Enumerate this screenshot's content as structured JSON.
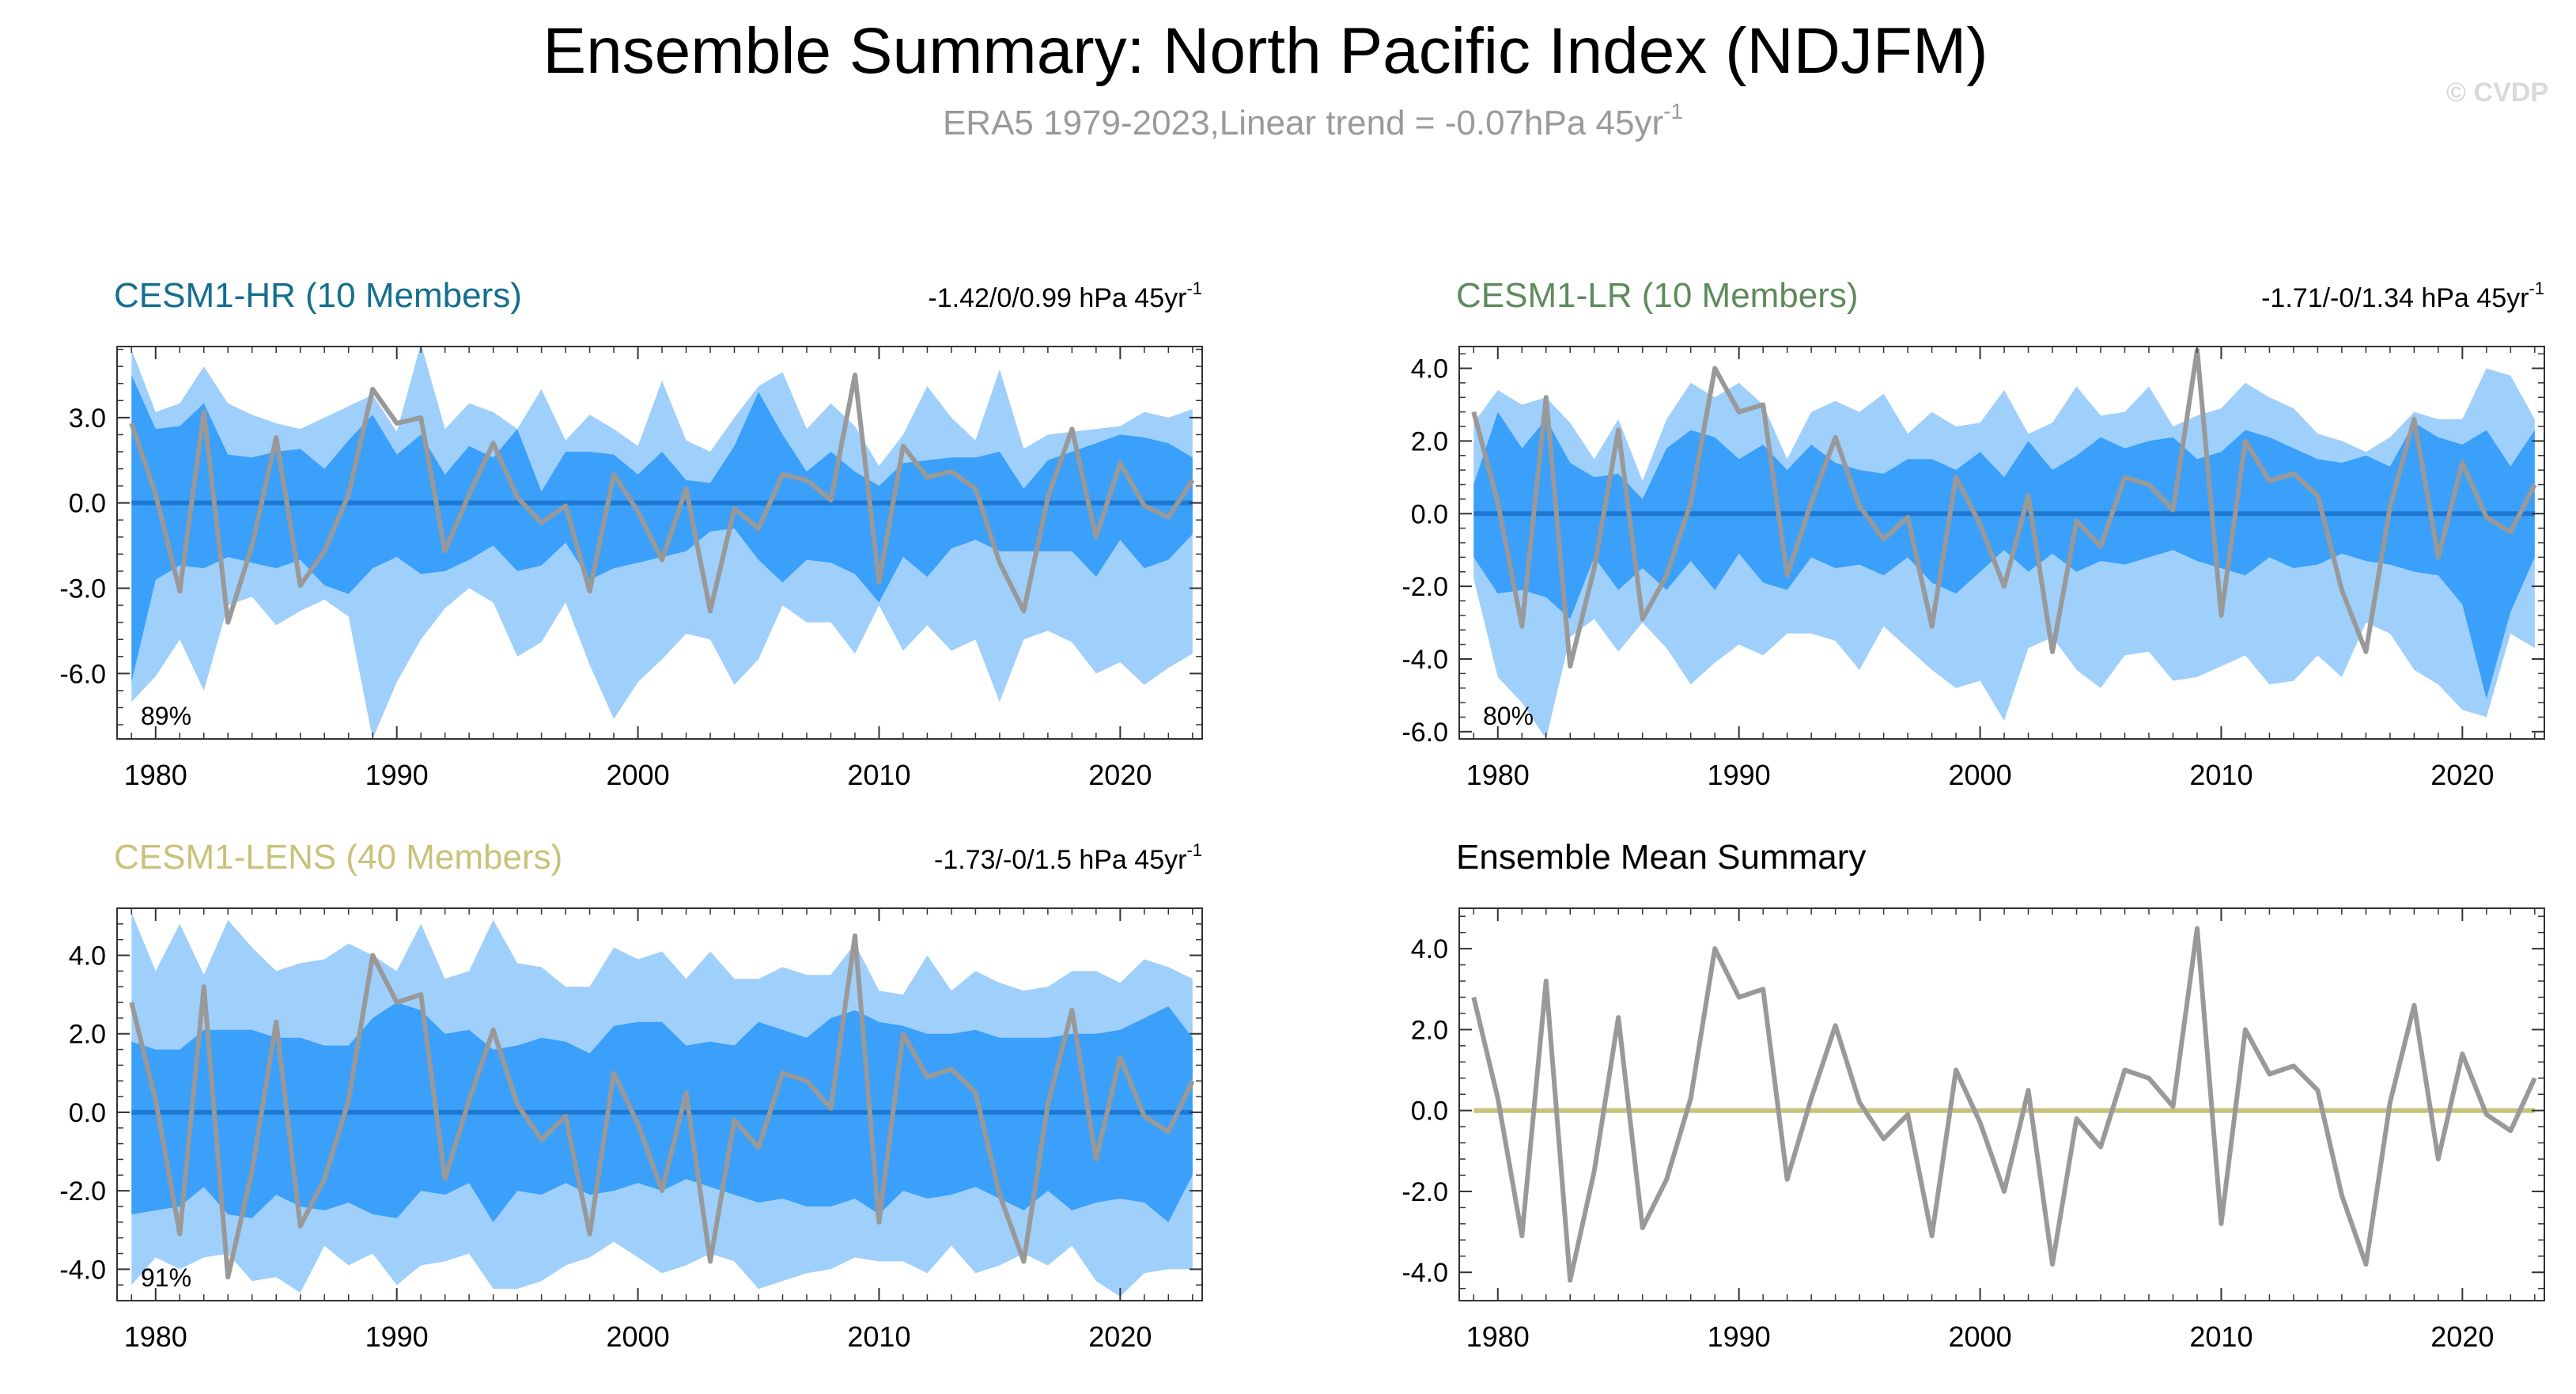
{
  "figure": {
    "title": "Ensemble Summary: North Pacific Index (NDJFM)",
    "subtitle": "ERA5 1979-2023,Linear trend = -0.07hPa 45yr",
    "subtitle_sup": "-1",
    "watermark": "© CVDP"
  },
  "colors": {
    "outer_band": "#9fcffb",
    "inner_band": "#3aa0fa",
    "zero_line": "#1f78d1",
    "obs_line": "#999999",
    "hr_title": "#136f8d",
    "lr_title": "#5f8a5c",
    "lens_title": "#c8c27a",
    "mean_zero": "#c8c27a",
    "subtitle": "#9a9a9a",
    "watermark": "#d9d9d9"
  },
  "panels": [
    {
      "id": "hr",
      "label": "CESM1-HR (10 Members)",
      "trend": "-1.42/0/0.99 hPa 45yr",
      "trend_sup": "-1",
      "pct": "89%",
      "yticks": [
        "3.0",
        "0.0",
        "-3.0",
        "-6.0"
      ],
      "xticks": [
        "1980",
        "1990",
        "2000",
        "2010",
        "2020"
      ]
    },
    {
      "id": "lr",
      "label": "CESM1-LR (10 Members)",
      "trend": "-1.71/-0/1.34 hPa 45yr",
      "trend_sup": "-1",
      "pct": "80%",
      "yticks": [
        "4.0",
        "2.0",
        "0.0",
        "-2.0",
        "-4.0",
        "-6.0"
      ],
      "xticks": [
        "1980",
        "1990",
        "2000",
        "2010",
        "2020"
      ]
    },
    {
      "id": "lens",
      "label": "CESM1-LENS (40 Members)",
      "trend": "-1.73/-0/1.5 hPa 45yr",
      "trend_sup": "-1",
      "pct": "91%",
      "yticks": [
        "4.0",
        "2.0",
        "0.0",
        "-2.0",
        "-4.0"
      ],
      "xticks": [
        "1980",
        "1990",
        "2000",
        "2010",
        "2020"
      ]
    },
    {
      "id": "mean",
      "label": "Ensemble Mean Summary",
      "yticks": [
        "4.0",
        "2.0",
        "0.0",
        "-2.0",
        "-4.0"
      ],
      "xticks": [
        "1980",
        "1990",
        "2000",
        "2010",
        "2020"
      ]
    }
  ],
  "chart_data": [
    {
      "type": "area",
      "title": "CESM1-HR (10 Members)",
      "ylim": [
        -8.3,
        5.5
      ],
      "xlim": [
        1978.4,
        2023.4
      ],
      "x": [
        1979,
        1980,
        1981,
        1982,
        1983,
        1984,
        1985,
        1986,
        1987,
        1988,
        1989,
        1990,
        1991,
        1992,
        1993,
        1994,
        1995,
        1996,
        1997,
        1998,
        1999,
        2000,
        2001,
        2002,
        2003,
        2004,
        2005,
        2006,
        2007,
        2008,
        2009,
        2010,
        2011,
        2012,
        2013,
        2014,
        2015,
        2016,
        2017,
        2018,
        2019,
        2020,
        2021,
        2022,
        2023
      ],
      "outer_upper": [
        5.4,
        3.2,
        3.5,
        4.8,
        3.5,
        3.1,
        2.8,
        2.6,
        3.0,
        3.4,
        3.8,
        2.5,
        5.6,
        2.6,
        3.5,
        3.2,
        2.6,
        4.0,
        2.2,
        3.1,
        2.6,
        2.0,
        4.3,
        2.2,
        1.8,
        3.0,
        4.1,
        4.6,
        2.6,
        3.5,
        2.7,
        1.3,
        2.4,
        4.1,
        3.0,
        2.2,
        4.7,
        1.9,
        2.4,
        2.5,
        2.6,
        2.7,
        3.2,
        3.0,
        3.3
      ],
      "inner_upper": [
        4.5,
        2.6,
        2.7,
        3.5,
        1.7,
        1.6,
        1.8,
        1.9,
        1.2,
        2.2,
        3.1,
        1.7,
        2.4,
        1.0,
        2.0,
        1.6,
        2.6,
        0.4,
        1.8,
        1.8,
        1.7,
        1.0,
        1.8,
        0.8,
        0.7,
        2.0,
        3.9,
        2.4,
        1.1,
        1.8,
        1.1,
        0.6,
        1.4,
        1.5,
        1.6,
        1.6,
        1.8,
        0.5,
        1.5,
        1.8,
        2.1,
        2.4,
        2.3,
        2.1,
        1.6
      ],
      "inner_lower": [
        -6.3,
        -2.7,
        -2.2,
        -2.3,
        -1.9,
        -2.1,
        -2.3,
        -2.0,
        -2.9,
        -3.2,
        -2.3,
        -1.9,
        -2.5,
        -2.4,
        -2.0,
        -1.5,
        -2.4,
        -2.2,
        -1.4,
        -2.7,
        -2.3,
        -2.1,
        -1.9,
        -1.7,
        -1.0,
        -0.9,
        -2.0,
        -2.8,
        -2.0,
        -2.1,
        -2.5,
        -3.5,
        -1.9,
        -2.6,
        -1.6,
        -1.3,
        -1.7,
        -1.7,
        -1.7,
        -1.7,
        -2.6,
        -1.3,
        -2.3,
        -2.0,
        -1.1
      ],
      "outer_lower": [
        -7.0,
        -6.1,
        -4.8,
        -6.6,
        -3.6,
        -3.3,
        -4.3,
        -3.8,
        -3.4,
        -4.0,
        -8.3,
        -6.3,
        -4.8,
        -3.7,
        -3.0,
        -3.5,
        -5.4,
        -4.9,
        -3.5,
        -5.7,
        -7.6,
        -6.3,
        -5.5,
        -4.6,
        -4.8,
        -6.4,
        -5.5,
        -3.6,
        -4.2,
        -4.2,
        -5.3,
        -3.6,
        -5.2,
        -4.3,
        -5.2,
        -4.8,
        -7.0,
        -4.8,
        -4.5,
        -4.9,
        -6.0,
        -5.6,
        -6.4,
        -5.8,
        -5.3
      ],
      "observed": [
        2.8,
        0.3,
        -3.1,
        3.2,
        -4.2,
        -1.5,
        2.3,
        -2.9,
        -1.7,
        0.3,
        4.0,
        2.8,
        3.0,
        -1.7,
        0.3,
        2.1,
        0.2,
        -0.7,
        -0.1,
        -3.1,
        1.0,
        -0.3,
        -2.0,
        0.5,
        -3.8,
        -0.2,
        -0.9,
        1.0,
        0.8,
        0.1,
        4.5,
        -2.8,
        2.0,
        0.9,
        1.1,
        0.5,
        -2.1,
        -3.8,
        0.2,
        2.6,
        -1.2,
        1.4,
        -0.1,
        -0.5,
        0.8
      ]
    },
    {
      "type": "area",
      "title": "CESM1-LR (10 Members)",
      "ylim": [
        -6.2,
        4.6
      ],
      "xlim": [
        1978.4,
        2023.4
      ],
      "x": [
        1979,
        1980,
        1981,
        1982,
        1983,
        1984,
        1985,
        1986,
        1987,
        1988,
        1989,
        1990,
        1991,
        1992,
        1993,
        1994,
        1995,
        1996,
        1997,
        1998,
        1999,
        2000,
        2001,
        2002,
        2003,
        2004,
        2005,
        2006,
        2007,
        2008,
        2009,
        2010,
        2011,
        2012,
        2013,
        2014,
        2015,
        2016,
        2017,
        2018,
        2019,
        2020,
        2021,
        2022,
        2023
      ],
      "outer_upper": [
        2.5,
        3.4,
        3.0,
        3.2,
        2.5,
        1.5,
        2.6,
        0.9,
        2.6,
        3.6,
        3.2,
        3.6,
        3.0,
        1.5,
        2.8,
        3.1,
        2.8,
        3.3,
        2.2,
        2.8,
        2.4,
        2.5,
        3.4,
        2.2,
        2.5,
        3.5,
        2.7,
        2.8,
        3.5,
        2.4,
        2.7,
        2.9,
        3.6,
        3.2,
        2.9,
        2.2,
        2.0,
        1.7,
        2.1,
        2.8,
        2.6,
        2.6,
        4.0,
        3.8,
        2.6
      ],
      "inner_upper": [
        0.8,
        2.8,
        1.8,
        2.6,
        1.4,
        1.0,
        1.1,
        0.4,
        1.8,
        2.3,
        2.1,
        1.5,
        1.9,
        1.2,
        1.9,
        1.4,
        1.2,
        1.1,
        1.5,
        1.5,
        1.2,
        1.7,
        1.0,
        2.0,
        1.2,
        1.6,
        2.1,
        1.8,
        2.0,
        2.1,
        1.5,
        1.7,
        2.3,
        2.1,
        1.8,
        1.5,
        1.4,
        1.6,
        1.3,
        2.5,
        2.1,
        1.9,
        2.3,
        1.3,
        2.3
      ],
      "inner_lower": [
        -1.2,
        -2.2,
        -2.1,
        -2.3,
        -2.9,
        -1.2,
        -2.1,
        -1.5,
        -2.1,
        -1.3,
        -2.1,
        -1.1,
        -1.9,
        -2.1,
        -1.2,
        -1.5,
        -1.4,
        -1.7,
        -1.2,
        -1.9,
        -2.2,
        -1.6,
        -1.0,
        -1.6,
        -1.1,
        -1.6,
        -1.3,
        -1.4,
        -1.2,
        -1.0,
        -1.3,
        -1.5,
        -1.7,
        -1.2,
        -1.5,
        -1.4,
        -1.1,
        -1.3,
        -1.4,
        -1.6,
        -1.7,
        -2.5,
        -5.1,
        -2.7,
        -1.2
      ],
      "outer_lower": [
        -1.8,
        -4.5,
        -5.2,
        -6.2,
        -3.4,
        -2.9,
        -3.8,
        -3.0,
        -3.7,
        -4.7,
        -4.1,
        -3.6,
        -3.9,
        -3.3,
        -3.3,
        -3.5,
        -4.3,
        -3.1,
        -3.7,
        -4.3,
        -4.8,
        -4.6,
        -5.7,
        -3.7,
        -3.4,
        -4.3,
        -4.8,
        -3.9,
        -3.8,
        -4.6,
        -4.5,
        -4.2,
        -3.9,
        -4.7,
        -4.6,
        -3.9,
        -4.5,
        -3.0,
        -3.3,
        -4.3,
        -4.7,
        -5.4,
        -5.6,
        -3.3,
        -3.7
      ],
      "observed": [
        2.8,
        0.3,
        -3.1,
        3.2,
        -4.2,
        -1.5,
        2.3,
        -2.9,
        -1.7,
        0.3,
        4.0,
        2.8,
        3.0,
        -1.7,
        0.3,
        2.1,
        0.2,
        -0.7,
        -0.1,
        -3.1,
        1.0,
        -0.3,
        -2.0,
        0.5,
        -3.8,
        -0.2,
        -0.9,
        1.0,
        0.8,
        0.1,
        4.5,
        -2.8,
        2.0,
        0.9,
        1.1,
        0.5,
        -2.1,
        -3.8,
        0.2,
        2.6,
        -1.2,
        1.4,
        -0.1,
        -0.5,
        0.8
      ]
    },
    {
      "type": "area",
      "title": "CESM1-LENS (40 Members)",
      "ylim": [
        -4.8,
        5.2
      ],
      "xlim": [
        1978.4,
        2023.4
      ],
      "x": [
        1979,
        1980,
        1981,
        1982,
        1983,
        1984,
        1985,
        1986,
        1987,
        1988,
        1989,
        1990,
        1991,
        1992,
        1993,
        1994,
        1995,
        1996,
        1997,
        1998,
        1999,
        2000,
        2001,
        2002,
        2003,
        2004,
        2005,
        2006,
        2007,
        2008,
        2009,
        2010,
        2011,
        2012,
        2013,
        2014,
        2015,
        2016,
        2017,
        2018,
        2019,
        2020,
        2021,
        2022,
        2023
      ],
      "outer_upper": [
        5.1,
        3.6,
        4.8,
        3.5,
        4.9,
        4.2,
        3.6,
        3.8,
        3.9,
        4.3,
        4.0,
        3.6,
        4.8,
        3.4,
        3.6,
        4.9,
        3.8,
        3.7,
        3.2,
        3.2,
        4.2,
        3.9,
        4.1,
        3.4,
        4.1,
        3.4,
        3.4,
        3.7,
        3.5,
        3.5,
        4.3,
        3.1,
        3.0,
        4.0,
        3.1,
        3.6,
        3.3,
        3.1,
        3.2,
        3.6,
        3.6,
        3.3,
        3.9,
        3.7,
        3.4
      ],
      "inner_upper": [
        1.8,
        1.6,
        1.6,
        2.1,
        2.1,
        2.1,
        1.9,
        1.9,
        1.7,
        1.7,
        2.4,
        2.8,
        2.6,
        2.0,
        2.1,
        1.6,
        1.7,
        1.9,
        1.8,
        1.5,
        2.2,
        2.3,
        2.3,
        1.7,
        1.8,
        1.7,
        2.3,
        2.1,
        1.9,
        2.4,
        2.6,
        2.3,
        2.2,
        2.0,
        2.0,
        2.1,
        1.9,
        1.9,
        1.9,
        2.0,
        2.0,
        2.1,
        2.4,
        2.7,
        1.9
      ],
      "inner_lower": [
        -2.6,
        -2.5,
        -2.4,
        -1.9,
        -2.6,
        -2.7,
        -2.1,
        -2.4,
        -2.5,
        -2.3,
        -2.6,
        -2.7,
        -2.0,
        -2.1,
        -1.8,
        -2.8,
        -2.0,
        -2.1,
        -1.8,
        -2.1,
        -2.0,
        -1.8,
        -2.0,
        -1.7,
        -1.9,
        -2.1,
        -2.3,
        -2.2,
        -2.4,
        -2.4,
        -2.2,
        -2.6,
        -2.0,
        -2.2,
        -2.1,
        -1.9,
        -2.2,
        -2.5,
        -2.0,
        -2.5,
        -2.3,
        -2.2,
        -2.3,
        -2.8,
        -1.6
      ],
      "outer_lower": [
        -4.4,
        -3.7,
        -4.0,
        -3.7,
        -3.6,
        -4.3,
        -4.2,
        -4.6,
        -3.4,
        -3.9,
        -3.6,
        -4.4,
        -3.9,
        -3.8,
        -3.6,
        -4.5,
        -4.5,
        -4.3,
        -3.9,
        -3.7,
        -3.3,
        -3.7,
        -4.1,
        -3.9,
        -3.6,
        -3.8,
        -4.5,
        -4.3,
        -4.1,
        -4.0,
        -3.7,
        -3.8,
        -3.8,
        -4.1,
        -3.4,
        -4.1,
        -3.9,
        -3.6,
        -3.9,
        -3.4,
        -4.3,
        -4.7,
        -4.1,
        -4.0,
        -4.0
      ],
      "observed": [
        2.8,
        0.3,
        -3.1,
        3.2,
        -4.2,
        -1.5,
        2.3,
        -2.9,
        -1.7,
        0.3,
        4.0,
        2.8,
        3.0,
        -1.7,
        0.3,
        2.1,
        0.2,
        -0.7,
        -0.1,
        -3.1,
        1.0,
        -0.3,
        -2.0,
        0.5,
        -3.8,
        -0.2,
        -0.9,
        1.0,
        0.8,
        0.1,
        4.5,
        -2.8,
        2.0,
        0.9,
        1.1,
        0.5,
        -2.1,
        -3.8,
        0.2,
        2.6,
        -1.2,
        1.4,
        -0.1,
        -0.5,
        0.8
      ]
    },
    {
      "type": "line",
      "title": "Ensemble Mean Summary",
      "ylim": [
        -4.7,
        5.0
      ],
      "xlim": [
        1978.4,
        2023.4
      ],
      "x": [
        1979,
        1980,
        1981,
        1982,
        1983,
        1984,
        1985,
        1986,
        1987,
        1988,
        1989,
        1990,
        1991,
        1992,
        1993,
        1994,
        1995,
        1996,
        1997,
        1998,
        1999,
        2000,
        2001,
        2002,
        2003,
        2004,
        2005,
        2006,
        2007,
        2008,
        2009,
        2010,
        2011,
        2012,
        2013,
        2014,
        2015,
        2016,
        2017,
        2018,
        2019,
        2020,
        2021,
        2022,
        2023
      ],
      "ensemble_mean": [
        0,
        0,
        0,
        0,
        0,
        0,
        0,
        0,
        0,
        0,
        0,
        0,
        0,
        0,
        0,
        0,
        0,
        0,
        0,
        0,
        0,
        0,
        0,
        0,
        0,
        0,
        0,
        0,
        0,
        0,
        0,
        0,
        0,
        0,
        0,
        0,
        0,
        0,
        0,
        0,
        0,
        0,
        0,
        0,
        0
      ],
      "observed": [
        2.8,
        0.3,
        -3.1,
        3.2,
        -4.2,
        -1.5,
        2.3,
        -2.9,
        -1.7,
        0.3,
        4.0,
        2.8,
        3.0,
        -1.7,
        0.3,
        2.1,
        0.2,
        -0.7,
        -0.1,
        -3.1,
        1.0,
        -0.3,
        -2.0,
        0.5,
        -3.8,
        -0.2,
        -0.9,
        1.0,
        0.8,
        0.1,
        4.5,
        -2.8,
        2.0,
        0.9,
        1.1,
        0.5,
        -2.1,
        -3.8,
        0.2,
        2.6,
        -1.2,
        1.4,
        -0.1,
        -0.5,
        0.8
      ]
    }
  ]
}
